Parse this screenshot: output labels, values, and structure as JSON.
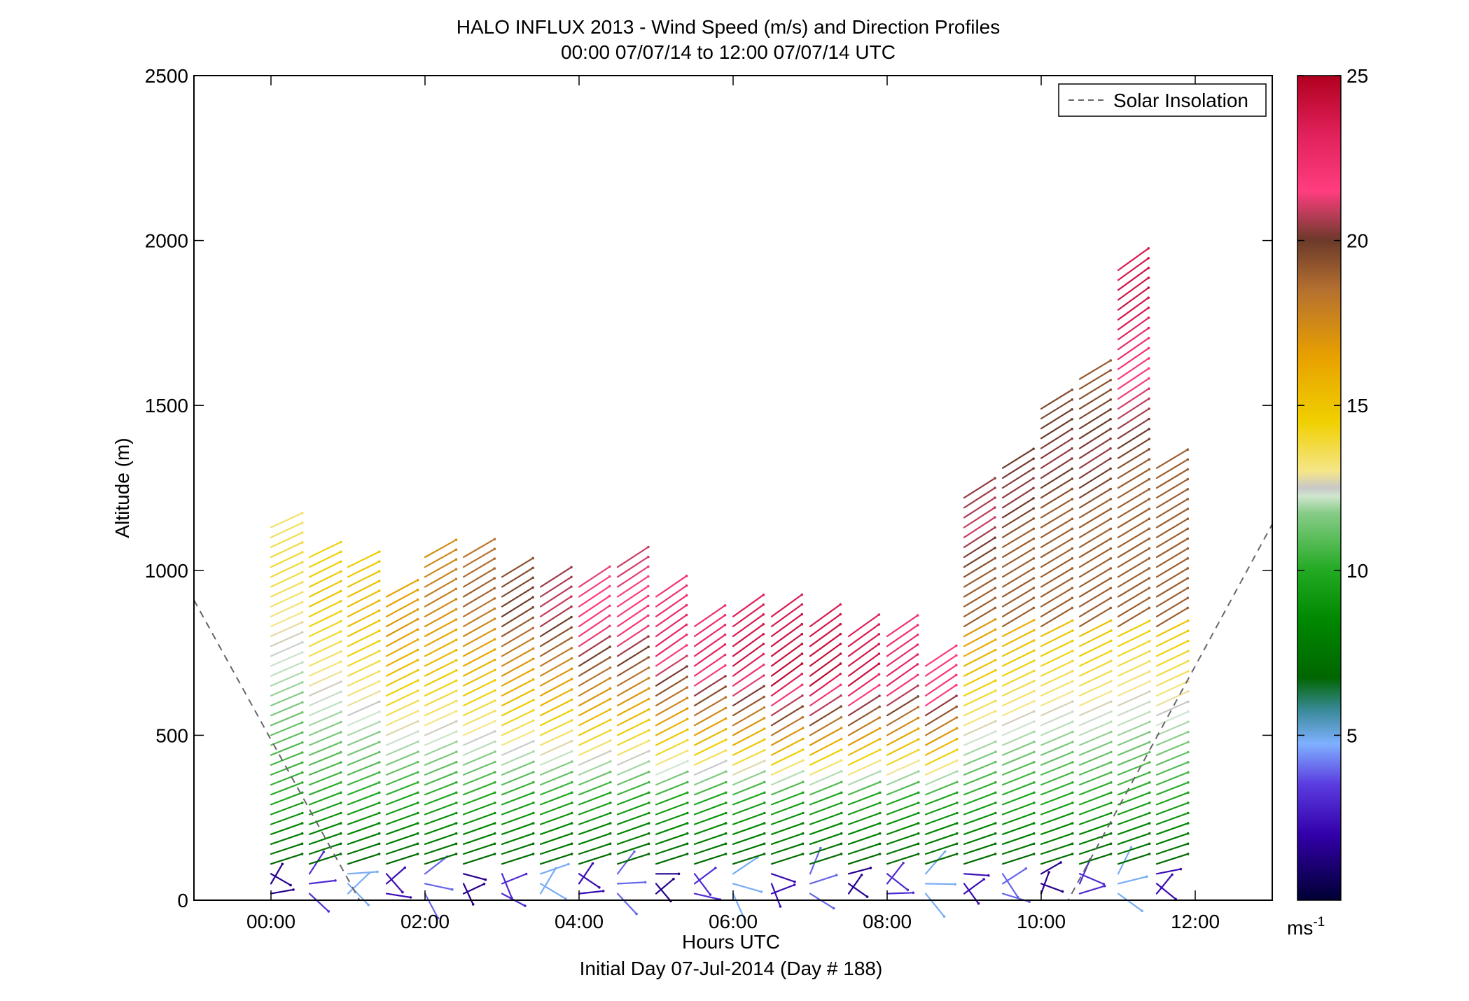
{
  "chart_data": {
    "type": "wind-barb-profile",
    "title": "HALO INFLUX 2013 - Wind Speed (m/s) and Direction Profiles",
    "subtitle": "00:00 07/07/14 to 12:00 07/07/14  UTC",
    "xlabel": "Hours UTC",
    "xlabel2": "Initial Day 07-Jul-2014 (Day # 188)",
    "ylabel": "Altitude (m)",
    "xlim": [
      -1.0,
      13.0
    ],
    "ylim": [
      0,
      2500
    ],
    "x_ticks": [
      0,
      2,
      4,
      6,
      8,
      10,
      12
    ],
    "x_tick_labels": [
      "00:00",
      "02:00",
      "04:00",
      "06:00",
      "08:00",
      "10:00",
      "12:00"
    ],
    "y_ticks": [
      0,
      500,
      1000,
      1500,
      2000,
      2500
    ],
    "y_tick_labels": [
      "0",
      "500",
      "1000",
      "1500",
      "2000",
      "2500"
    ],
    "legend": {
      "label": "Solar Insolation",
      "position": "top-right"
    },
    "colorbar": {
      "ticks": [
        5,
        10,
        15,
        20,
        25
      ],
      "tick_labels": [
        "5",
        "10",
        "15",
        "20",
        "25"
      ],
      "range": [
        0,
        25
      ],
      "unit": "ms",
      "unit_exp": "-1"
    },
    "solar_insolation": [
      {
        "x": -1.0,
        "y": 910
      },
      {
        "x": 1.15,
        "y": 0
      },
      {
        "x": 10.35,
        "y": 0
      },
      {
        "x": 13.0,
        "y": 1140
      }
    ],
    "profiles": [
      {
        "hour": 0.0,
        "top": 1140,
        "peak": 14,
        "peak_alt": 1000
      },
      {
        "hour": 0.5,
        "top": 1060,
        "peak": 15,
        "peak_alt": 900
      },
      {
        "hour": 1.0,
        "top": 1010,
        "peak": 15.5,
        "peak_alt": 850
      },
      {
        "hour": 1.5,
        "top": 940,
        "peak": 17,
        "peak_alt": 800
      },
      {
        "hour": 2.0,
        "top": 1050,
        "peak": 18,
        "peak_alt": 900
      },
      {
        "hour": 2.5,
        "top": 1060,
        "peak": 19,
        "peak_alt": 900
      },
      {
        "hour": 3.0,
        "top": 1000,
        "peak": 20,
        "peak_alt": 850
      },
      {
        "hour": 3.5,
        "top": 970,
        "peak": 21,
        "peak_alt": 850
      },
      {
        "hour": 4.0,
        "top": 960,
        "peak": 22,
        "peak_alt": 800
      },
      {
        "hour": 4.5,
        "top": 1010,
        "peak": 22,
        "peak_alt": 800
      },
      {
        "hour": 5.0,
        "top": 940,
        "peak": 23,
        "peak_alt": 750
      },
      {
        "hour": 5.5,
        "top": 850,
        "peak": 23,
        "peak_alt": 700
      },
      {
        "hour": 6.0,
        "top": 860,
        "peak": 24,
        "peak_alt": 700
      },
      {
        "hour": 6.5,
        "top": 860,
        "peak": 24.5,
        "peak_alt": 650
      },
      {
        "hour": 7.0,
        "top": 840,
        "peak": 24.5,
        "peak_alt": 650
      },
      {
        "hour": 7.5,
        "top": 810,
        "peak": 24,
        "peak_alt": 650
      },
      {
        "hour": 8.0,
        "top": 800,
        "peak": 23,
        "peak_alt": 650
      },
      {
        "hour": 8.5,
        "top": 730,
        "peak": 22,
        "peak_alt": 600
      },
      {
        "hour": 9.0,
        "top": 1240,
        "peak": 21,
        "peak_alt": 1100
      },
      {
        "hour": 9.5,
        "top": 1330,
        "peak": 20.5,
        "peak_alt": 1200
      },
      {
        "hour": 10.0,
        "top": 1500,
        "peak": 20.5,
        "peak_alt": 1300
      },
      {
        "hour": 10.5,
        "top": 1600,
        "peak": 20.5,
        "peak_alt": 1300
      },
      {
        "hour": 11.0,
        "top": 1910,
        "peak": 24,
        "peak_alt": 1800
      },
      {
        "hour": 11.5,
        "top": 1330,
        "peak": 19,
        "peak_alt": 1200
      }
    ]
  }
}
